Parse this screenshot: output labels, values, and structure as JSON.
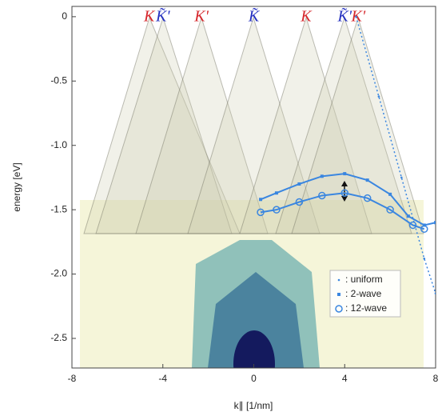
{
  "chart_data": {
    "type": "line",
    "xlabel": "k∥ [1/nm]",
    "ylabel": "energy [eV]",
    "xlim": [
      -8,
      8
    ],
    "ylim": [
      -2.73,
      0.08
    ],
    "xticks": [
      -8,
      -4,
      0,
      4,
      8
    ],
    "yticks": [
      0,
      -0.5,
      {
        "value": -1,
        "label": "-1.0"
      },
      -1.5,
      {
        "value": -2,
        "label": "-2.0"
      },
      -2.5
    ],
    "points": [
      {
        "label": "K",
        "x": -4.6,
        "color": "#d6282d"
      },
      {
        "label": "K̃'",
        "x": -4,
        "color": "#2430c0"
      },
      {
        "label": "K'",
        "x": -2.3,
        "color": "#d6282d"
      },
      {
        "label": "K̃",
        "x": 0,
        "color": "#2430c0"
      },
      {
        "label": "K",
        "x": 2.3,
        "color": "#d6282d"
      },
      {
        "label": "K̃'",
        "x": 4,
        "color": "#2430c0"
      },
      {
        "label": "K'",
        "x": 4.6,
        "color": "#d6282d"
      }
    ],
    "series": [
      {
        "name": ": uniform",
        "color": "#3a86e0",
        "marker": "dot",
        "x": [
          4.5,
          5.5,
          6.5,
          7.5,
          8
        ],
        "values": [
          0,
          -0.62,
          -1.25,
          -1.88,
          -2.15
        ]
      },
      {
        "name": ": 2-wave",
        "color": "#3a86e0",
        "marker": "square",
        "x": [
          0.3,
          1,
          2,
          3,
          4,
          5,
          6,
          6.8,
          7.5,
          8
        ],
        "values": [
          -1.42,
          -1.37,
          -1.3,
          -1.24,
          -1.22,
          -1.27,
          -1.38,
          -1.55,
          -1.62,
          -1.6
        ]
      },
      {
        "name": ": 12-wave",
        "color": "#3a86e0",
        "marker": "circle",
        "x": [
          0.3,
          1,
          2,
          3,
          4,
          5,
          6,
          7,
          7.5
        ],
        "values": [
          -1.52,
          -1.5,
          -1.44,
          -1.39,
          -1.37,
          -1.41,
          -1.5,
          -1.62,
          -1.65
        ]
      }
    ]
  }
}
